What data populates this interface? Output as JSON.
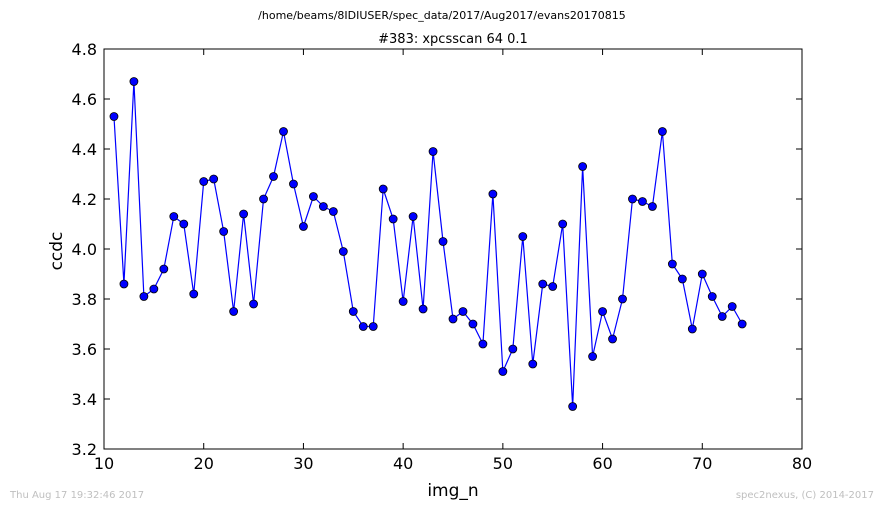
{
  "figure": {
    "suptitle": "/home/beams/8IDIUSER/spec_data/2017/Aug2017/evans20170815",
    "timestamp": "Thu Aug 17 19:32:46 2017",
    "footer": "spec2nexus, (C) 2014-2017"
  },
  "chart_data": {
    "type": "line",
    "title": "#383: xpcsscan 64 0.1",
    "xlabel": "img_n",
    "ylabel": "ccdc",
    "xlim": [
      10,
      80
    ],
    "ylim": [
      3.2,
      4.8
    ],
    "xticks": [
      "10",
      "20",
      "30",
      "40",
      "50",
      "60",
      "70",
      "80"
    ],
    "yticks": [
      "3.2",
      "3.4",
      "3.6",
      "3.8",
      "4.0",
      "4.2",
      "4.4",
      "4.6",
      "4.8"
    ],
    "grid": false,
    "legend": "none",
    "series": [
      {
        "color": "#0000ff",
        "marker": "circle",
        "x": [
          11,
          12,
          13,
          14,
          15,
          16,
          17,
          18,
          19,
          20,
          21,
          22,
          23,
          24,
          25,
          26,
          27,
          28,
          29,
          30,
          31,
          32,
          33,
          34,
          35,
          36,
          37,
          38,
          39,
          40,
          41,
          42,
          43,
          44,
          45,
          46,
          47,
          48,
          49,
          50,
          51,
          52,
          53,
          54,
          55,
          56,
          57,
          58,
          59,
          60,
          61,
          62,
          63,
          64,
          65,
          66,
          67,
          68,
          69,
          70,
          71,
          72,
          73,
          74
        ],
        "y": [
          4.53,
          3.86,
          4.67,
          3.81,
          3.84,
          3.92,
          4.13,
          4.1,
          3.82,
          4.27,
          4.28,
          4.07,
          3.75,
          4.14,
          3.78,
          4.2,
          4.29,
          4.47,
          4.26,
          4.09,
          4.21,
          4.17,
          4.15,
          3.99,
          3.75,
          3.69,
          3.69,
          4.24,
          4.12,
          3.79,
          4.13,
          3.76,
          4.39,
          4.03,
          3.72,
          3.75,
          3.7,
          3.62,
          4.22,
          3.51,
          3.6,
          4.05,
          3.54,
          3.86,
          3.85,
          4.1,
          3.37,
          4.33,
          3.57,
          3.75,
          3.64,
          3.8,
          4.2,
          4.19,
          4.17,
          4.47,
          3.94,
          3.88,
          3.68,
          3.9,
          3.81,
          3.73,
          3.77,
          3.7
        ]
      }
    ]
  }
}
